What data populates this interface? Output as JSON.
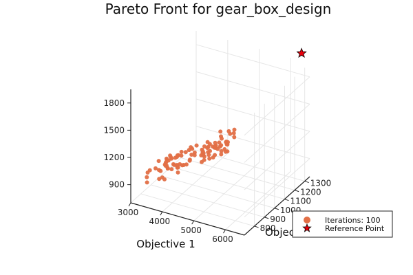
{
  "chart_data": {
    "type": "scatter",
    "title": "Pareto Front for gear_box_design",
    "xlabel": "Objective 1",
    "ylabel": "Objective 2",
    "zlabel": "",
    "xticks": [
      "3000",
      "4000",
      "5000",
      "6000"
    ],
    "yticks": [
      "800",
      "900",
      "1000",
      "1100",
      "1200",
      "1300"
    ],
    "zticks": [
      "900",
      "1200",
      "1500",
      "1800"
    ],
    "xlim": [
      3000,
      6600
    ],
    "ylim": [
      700,
      1350
    ],
    "zlim": [
      700,
      1950
    ],
    "grid": true,
    "legend_position": "bottom-right",
    "series": [
      {
        "name": "Iterations: 100",
        "marker": "circle",
        "color": "#e26f46",
        "n_points": 100,
        "x_range": [
          3000,
          5200
        ],
        "y_range": [
          780,
          1050
        ],
        "z_range": [
          750,
          1450
        ]
      },
      {
        "name": "Reference Point",
        "marker": "star",
        "color": "#e8000b",
        "x": 6500,
        "y": 1300,
        "z": 2100
      }
    ]
  }
}
